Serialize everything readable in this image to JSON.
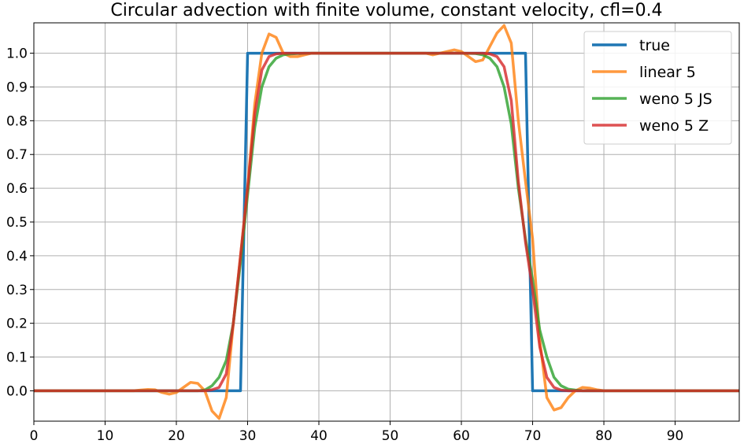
{
  "chart_data": {
    "type": "line",
    "title": "Circular advection with finite volume, constant velocity, cfl=0.4",
    "xlabel": "",
    "ylabel": "",
    "xlim": [
      0,
      99
    ],
    "ylim": [
      -0.09,
      1.09
    ],
    "x_ticks": [
      0,
      10,
      20,
      30,
      40,
      50,
      60,
      70,
      80,
      90
    ],
    "x_tick_labels": [
      "0",
      "10",
      "20",
      "30",
      "40",
      "50",
      "60",
      "70",
      "80",
      "90"
    ],
    "y_ticks": [
      0.0,
      0.1,
      0.2,
      0.3,
      0.4,
      0.5,
      0.6,
      0.7,
      0.8,
      0.9,
      1.0
    ],
    "y_tick_labels": [
      "0.0",
      "0.1",
      "0.2",
      "0.3",
      "0.4",
      "0.5",
      "0.6",
      "0.7",
      "0.8",
      "0.9",
      "1.0"
    ],
    "grid": true,
    "legend_position": "top-right",
    "series": [
      {
        "name": "true",
        "color": "#1f77b4",
        "x": [
          0,
          29,
          30,
          69,
          70,
          99
        ],
        "y": [
          0,
          0,
          1,
          1,
          0,
          0
        ]
      },
      {
        "name": "linear 5",
        "color": "#ff7f0e",
        "x": [
          0,
          14,
          15,
          16,
          17,
          18,
          19,
          20,
          21,
          22,
          23,
          24,
          25,
          26,
          27,
          28,
          29,
          30,
          31,
          32,
          33,
          34,
          35,
          36,
          37,
          38,
          39,
          40,
          50,
          55,
          56,
          57,
          58,
          59,
          60,
          61,
          62,
          63,
          64,
          65,
          66,
          67,
          68,
          69,
          70,
          71,
          72,
          73,
          74,
          75,
          76,
          77,
          78,
          79,
          80,
          81,
          99
        ],
        "y": [
          0,
          0,
          0.002,
          0.004,
          0.003,
          -0.005,
          -0.01,
          -0.005,
          0.01,
          0.025,
          0.022,
          0.0,
          -0.06,
          -0.082,
          -0.02,
          0.2,
          0.4,
          0.6,
          0.85,
          1.0,
          1.057,
          1.047,
          1.0,
          0.99,
          0.99,
          0.995,
          1.0,
          1.0,
          1.0,
          1.0,
          0.995,
          1.0,
          1.005,
          1.01,
          1.005,
          0.99,
          0.975,
          0.98,
          1.02,
          1.06,
          1.082,
          1.03,
          0.8,
          0.62,
          0.45,
          0.15,
          -0.02,
          -0.057,
          -0.05,
          -0.02,
          0.0,
          0.01,
          0.008,
          0.003,
          0.0,
          0.0,
          0.0
        ]
      },
      {
        "name": "weno 5 JS",
        "color": "#2ca02c",
        "x": [
          0,
          23,
          24,
          25,
          26,
          27,
          28,
          29,
          30,
          31,
          32,
          33,
          34,
          35,
          36,
          37,
          38,
          40,
          60,
          62,
          63,
          64,
          65,
          66,
          67,
          68,
          69,
          70,
          71,
          72,
          73,
          74,
          75,
          76,
          77,
          99
        ],
        "y": [
          0,
          0,
          0.002,
          0.015,
          0.04,
          0.09,
          0.2,
          0.38,
          0.58,
          0.78,
          0.9,
          0.96,
          0.985,
          0.995,
          0.998,
          0.999,
          1.0,
          1.0,
          1.0,
          0.999,
          0.995,
          0.985,
          0.96,
          0.9,
          0.79,
          0.6,
          0.45,
          0.33,
          0.18,
          0.1,
          0.04,
          0.015,
          0.005,
          0.002,
          0.0,
          0.0
        ]
      },
      {
        "name": "weno 5 Z",
        "color": "#d62728",
        "x": [
          0,
          24,
          25,
          26,
          27,
          28,
          29,
          30,
          31,
          32,
          33,
          34,
          35,
          36,
          40,
          62,
          63,
          64,
          65,
          66,
          67,
          68,
          69,
          70,
          71,
          72,
          73,
          74,
          75,
          99
        ],
        "y": [
          0,
          0,
          0.003,
          0.01,
          0.05,
          0.2,
          0.4,
          0.6,
          0.82,
          0.95,
          0.99,
          0.998,
          1.0,
          1.0,
          1.0,
          1.0,
          1.0,
          0.998,
          0.99,
          0.96,
          0.86,
          0.62,
          0.44,
          0.3,
          0.13,
          0.04,
          0.01,
          0.002,
          0.0,
          0.0
        ]
      }
    ]
  }
}
